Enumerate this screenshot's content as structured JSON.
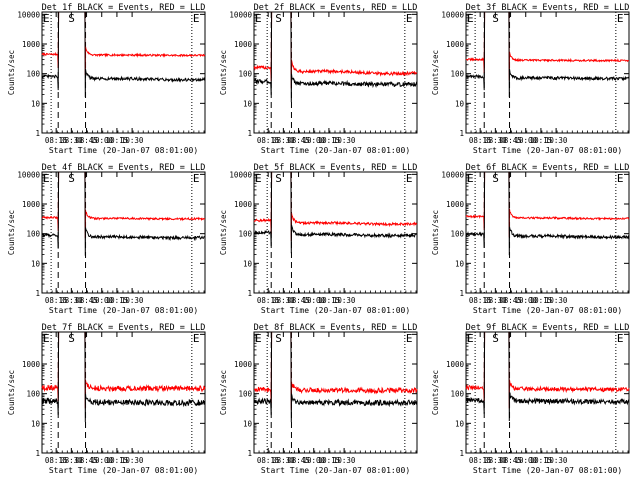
{
  "colors": {
    "events": "#000000",
    "lld": "#ff0000",
    "axis": "#000000",
    "background": "#ffffff"
  },
  "chart_data": [
    {
      "type": "line",
      "title": "Det 1f BLACK = Events, RED = LLD",
      "xlabel": "Start Time (20-Jan-07 08:01:00)",
      "ylabel": "Counts/sec",
      "yscale": "log",
      "ylim": [
        1,
        12000
      ],
      "xlim": [
        "08:01",
        "10:42"
      ],
      "x_ticks": [
        "08:15",
        "08:30",
        "08:45",
        "10:00",
        "10:15",
        "10:30"
      ],
      "y_ticks": [
        "1",
        "10",
        "100",
        "1000",
        "10000"
      ],
      "markers": [
        {
          "label": "E",
          "time": "08:01"
        },
        {
          "label": "S",
          "time": "08:26"
        },
        {
          "label": "E",
          "time": "10:29"
        }
      ],
      "dotted_lines": [
        "08:10",
        "10:29"
      ],
      "dashed_lines": [
        "08:17",
        "08:44"
      ],
      "series": [
        {
          "role": "lld",
          "color": "#ff0000",
          "base": 450,
          "tail": 420,
          "gap": [
            "08:17",
            "08:44"
          ],
          "peak": 12000,
          "noise": 0.03
        },
        {
          "role": "events",
          "color": "#000000",
          "base": 80,
          "tail": 65,
          "gap": [
            "08:17",
            "08:44"
          ],
          "peak": 12000,
          "noise": 0.05
        }
      ]
    },
    {
      "type": "line",
      "title": "Det 2f BLACK = Events, RED = LLD",
      "xlabel": "Start Time (20-Jan-07 08:01:00)",
      "ylabel": "Counts/sec",
      "yscale": "log",
      "ylim": [
        1,
        12000
      ],
      "xlim": [
        "08:01",
        "10:42"
      ],
      "x_ticks": [
        "08:15",
        "08:30",
        "08:45",
        "10:00",
        "10:15",
        "10:30"
      ],
      "y_ticks": [
        "1",
        "10",
        "100",
        "1000",
        "10000"
      ],
      "markers": [
        {
          "label": "E",
          "time": "08:01"
        },
        {
          "label": "S",
          "time": "08:21"
        },
        {
          "label": "E",
          "time": "10:30"
        }
      ],
      "dotted_lines": [
        "08:14",
        "10:30"
      ],
      "dashed_lines": [
        "08:18",
        "08:38"
      ],
      "series": [
        {
          "role": "lld",
          "color": "#ff0000",
          "base": 160,
          "tail": 110,
          "gap": [
            "08:18",
            "08:38"
          ],
          "peak": 12000,
          "noise": 0.05
        },
        {
          "role": "events",
          "color": "#000000",
          "base": 55,
          "tail": 45,
          "gap": [
            "08:18",
            "08:38"
          ],
          "peak": 12000,
          "noise": 0.07
        }
      ]
    },
    {
      "type": "line",
      "title": "Det 3f BLACK = Events, RED = LLD",
      "xlabel": "Start Time (20-Jan-07 08:01:00)",
      "ylabel": "Counts/sec",
      "yscale": "log",
      "ylim": [
        1,
        12000
      ],
      "xlim": [
        "08:01",
        "10:42"
      ],
      "x_ticks": [
        "08:15",
        "08:30",
        "08:45",
        "10:00",
        "10:15",
        "10:30"
      ],
      "y_ticks": [
        "1",
        "10",
        "100",
        "1000",
        "10000"
      ],
      "markers": [
        {
          "label": "E",
          "time": "08:01"
        },
        {
          "label": "S",
          "time": "08:26"
        },
        {
          "label": "E",
          "time": "10:29"
        }
      ],
      "dotted_lines": [
        "08:10",
        "10:29"
      ],
      "dashed_lines": [
        "08:19",
        "08:44"
      ],
      "series": [
        {
          "role": "lld",
          "color": "#ff0000",
          "base": 300,
          "tail": 280,
          "gap": [
            "08:19",
            "08:44"
          ],
          "peak": 12000,
          "noise": 0.03
        },
        {
          "role": "events",
          "color": "#000000",
          "base": 80,
          "tail": 70,
          "gap": [
            "08:19",
            "08:44"
          ],
          "peak": 12000,
          "noise": 0.05
        }
      ]
    },
    {
      "type": "line",
      "title": "Det 4f BLACK = Events, RED = LLD",
      "xlabel": "Start Time (20-Jan-07 08:01:00)",
      "ylabel": "Counts/sec",
      "yscale": "log",
      "ylim": [
        1,
        12000
      ],
      "xlim": [
        "08:01",
        "10:42"
      ],
      "x_ticks": [
        "08:15",
        "08:30",
        "08:45",
        "10:00",
        "10:15",
        "10:30"
      ],
      "y_ticks": [
        "1",
        "10",
        "100",
        "1000",
        "10000"
      ],
      "markers": [
        {
          "label": "E",
          "time": "08:01"
        },
        {
          "label": "S",
          "time": "08:26"
        },
        {
          "label": "E",
          "time": "10:29"
        }
      ],
      "dotted_lines": [
        "08:10",
        "10:29"
      ],
      "dashed_lines": [
        "08:17",
        "08:44"
      ],
      "series": [
        {
          "role": "lld",
          "color": "#ff0000",
          "base": 350,
          "tail": 320,
          "gap": [
            "08:17",
            "08:44"
          ],
          "peak": 12000,
          "noise": 0.03
        },
        {
          "role": "events",
          "color": "#000000",
          "base": 90,
          "tail": 75,
          "gap": [
            "08:17",
            "08:44"
          ],
          "peak": 12000,
          "noise": 0.05
        }
      ]
    },
    {
      "type": "line",
      "title": "Det 5f BLACK = Events, RED = LLD",
      "xlabel": "Start Time (20-Jan-07 08:01:00)",
      "ylabel": "Counts/sec",
      "yscale": "log",
      "ylim": [
        1,
        12000
      ],
      "xlim": [
        "08:01",
        "10:42"
      ],
      "x_ticks": [
        "08:15",
        "08:30",
        "08:45",
        "10:00",
        "10:15",
        "10:30"
      ],
      "y_ticks": [
        "1",
        "10",
        "100",
        "1000",
        "10000"
      ],
      "markers": [
        {
          "label": "E",
          "time": "08:01"
        },
        {
          "label": "S",
          "time": "08:21"
        },
        {
          "label": "E",
          "time": "10:30"
        }
      ],
      "dotted_lines": [
        "08:14",
        "10:30"
      ],
      "dashed_lines": [
        "08:18",
        "08:38"
      ],
      "series": [
        {
          "role": "lld",
          "color": "#ff0000",
          "base": 280,
          "tail": 220,
          "gap": [
            "08:18",
            "08:38"
          ],
          "peak": 12000,
          "noise": 0.04
        },
        {
          "role": "events",
          "color": "#000000",
          "base": 110,
          "tail": 90,
          "gap": [
            "08:18",
            "08:38"
          ],
          "peak": 12000,
          "noise": 0.05
        }
      ]
    },
    {
      "type": "line",
      "title": "Det 6f BLACK = Events, RED = LLD",
      "xlabel": "Start Time (20-Jan-07 08:01:00)",
      "ylabel": "Counts/sec",
      "yscale": "log",
      "ylim": [
        1,
        12000
      ],
      "xlim": [
        "08:01",
        "10:42"
      ],
      "x_ticks": [
        "08:15",
        "08:30",
        "08:45",
        "10:00",
        "10:15",
        "10:30"
      ],
      "y_ticks": [
        "1",
        "10",
        "100",
        "1000",
        "10000"
      ],
      "markers": [
        {
          "label": "E",
          "time": "08:01"
        },
        {
          "label": "S",
          "time": "08:26"
        },
        {
          "label": "E",
          "time": "10:29"
        }
      ],
      "dotted_lines": [
        "08:10",
        "10:29"
      ],
      "dashed_lines": [
        "08:19",
        "08:44"
      ],
      "series": [
        {
          "role": "lld",
          "color": "#ff0000",
          "base": 380,
          "tail": 330,
          "gap": [
            "08:19",
            "08:44"
          ],
          "peak": 12000,
          "noise": 0.03
        },
        {
          "role": "events",
          "color": "#000000",
          "base": 95,
          "tail": 80,
          "gap": [
            "08:19",
            "08:44"
          ],
          "peak": 12000,
          "noise": 0.05
        }
      ]
    },
    {
      "type": "line",
      "title": "Det 7f BLACK = Events, RED = LLD",
      "xlabel": "Start Time (20-Jan-07 08:01:00)",
      "ylabel": "Counts/sec",
      "yscale": "log",
      "ylim": [
        1,
        12000
      ],
      "xlim": [
        "08:01",
        "10:42"
      ],
      "x_ticks": [
        "08:15",
        "08:30",
        "08:45",
        "10:00",
        "10:15",
        "10:30"
      ],
      "y_ticks": [
        "1",
        "10",
        "100",
        "1000"
      ],
      "markers": [
        {
          "label": "E",
          "time": "08:01"
        },
        {
          "label": "S",
          "time": "08:26"
        },
        {
          "label": "E",
          "time": "10:29"
        }
      ],
      "dotted_lines": [
        "08:10",
        "10:29"
      ],
      "dashed_lines": [
        "08:17",
        "08:44"
      ],
      "series": [
        {
          "role": "lld",
          "color": "#ff0000",
          "base": 160,
          "tail": 150,
          "gap": [
            "08:17",
            "08:44"
          ],
          "peak": 12000,
          "noise": 0.09
        },
        {
          "role": "events",
          "color": "#000000",
          "base": 55,
          "tail": 50,
          "gap": [
            "08:17",
            "08:44"
          ],
          "peak": 12000,
          "noise": 0.1
        }
      ]
    },
    {
      "type": "line",
      "title": "Det 8f BLACK = Events, RED = LLD",
      "xlabel": "Start Time (20-Jan-07 08:01:00)",
      "ylabel": "Counts/sec",
      "yscale": "log",
      "ylim": [
        1,
        12000
      ],
      "xlim": [
        "08:01",
        "10:42"
      ],
      "x_ticks": [
        "08:15",
        "08:30",
        "08:45",
        "10:00",
        "10:15",
        "10:30"
      ],
      "y_ticks": [
        "1",
        "10",
        "100",
        "1000"
      ],
      "markers": [
        {
          "label": "E",
          "time": "08:01"
        },
        {
          "label": "S",
          "time": "08:21"
        },
        {
          "label": "E",
          "time": "10:30"
        }
      ],
      "dotted_lines": [
        "08:14",
        "10:30"
      ],
      "dashed_lines": [
        "08:18",
        "08:38"
      ],
      "series": [
        {
          "role": "lld",
          "color": "#ff0000",
          "base": 140,
          "tail": 130,
          "gap": [
            "08:18",
            "08:38"
          ],
          "peak": 12000,
          "noise": 0.08
        },
        {
          "role": "events",
          "color": "#000000",
          "base": 55,
          "tail": 50,
          "gap": [
            "08:18",
            "08:38"
          ],
          "peak": 12000,
          "noise": 0.09
        }
      ]
    },
    {
      "type": "line",
      "title": "Det 9f BLACK = Events, RED = LLD",
      "xlabel": "Start Time (20-Jan-07 08:01:00)",
      "ylabel": "Counts/sec",
      "yscale": "log",
      "ylim": [
        1,
        12000
      ],
      "xlim": [
        "08:01",
        "10:42"
      ],
      "x_ticks": [
        "08:15",
        "08:30",
        "08:45",
        "10:00",
        "10:15",
        "10:30"
      ],
      "y_ticks": [
        "1",
        "10",
        "100",
        "1000"
      ],
      "markers": [
        {
          "label": "E",
          "time": "08:01"
        },
        {
          "label": "S",
          "time": "08:26"
        },
        {
          "label": "E",
          "time": "10:29"
        }
      ],
      "dotted_lines": [
        "08:10",
        "10:29"
      ],
      "dashed_lines": [
        "08:19",
        "08:44"
      ],
      "series": [
        {
          "role": "lld",
          "color": "#ff0000",
          "base": 160,
          "tail": 140,
          "gap": [
            "08:19",
            "08:44"
          ],
          "peak": 12000,
          "noise": 0.07
        },
        {
          "role": "events",
          "color": "#000000",
          "base": 60,
          "tail": 55,
          "gap": [
            "08:19",
            "08:44"
          ],
          "peak": 12000,
          "noise": 0.08
        }
      ]
    }
  ]
}
